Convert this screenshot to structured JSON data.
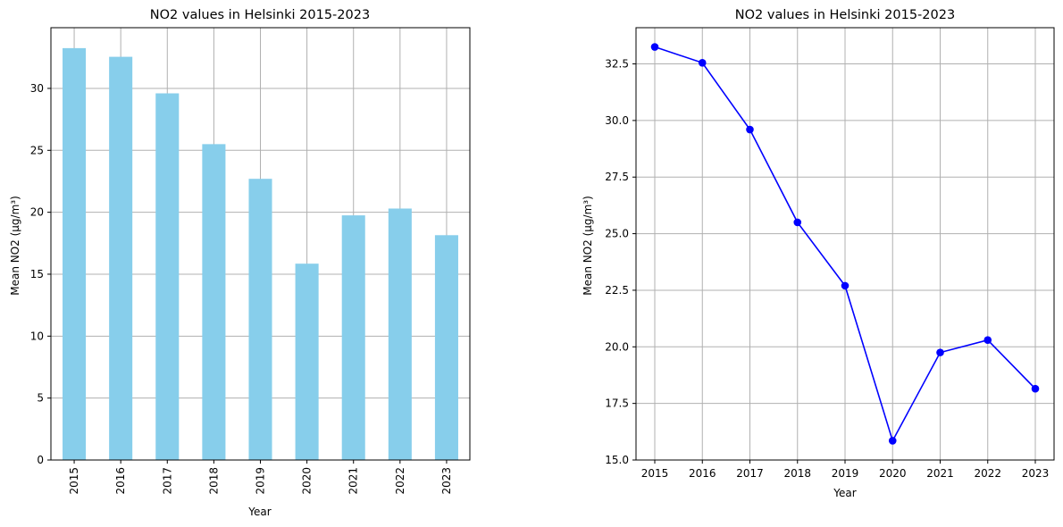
{
  "chart_data": [
    {
      "type": "bar",
      "title": "NO2 values in Helsinki 2015-2023",
      "xlabel": "Year",
      "ylabel": "Mean NO2 (µg/m³)",
      "categories": [
        "2015",
        "2016",
        "2017",
        "2018",
        "2019",
        "2020",
        "2021",
        "2022",
        "2023"
      ],
      "values": [
        33.25,
        32.55,
        29.6,
        25.5,
        22.7,
        15.85,
        19.75,
        20.3,
        18.15
      ],
      "ylim": [
        0,
        34.9
      ],
      "yticks": [
        0,
        5,
        10,
        15,
        20,
        25,
        30
      ],
      "ytick_labels": [
        "0",
        "5",
        "10",
        "15",
        "20",
        "25",
        "30"
      ],
      "bar_color": "#87ceeb",
      "grid": true,
      "xtick_rotation": "vertical"
    },
    {
      "type": "line",
      "title": "NO2 values in Helsinki 2015-2023",
      "xlabel": "Year",
      "ylabel": "Mean NO2 (µg/m³)",
      "x": [
        "2015",
        "2016",
        "2017",
        "2018",
        "2019",
        "2020",
        "2021",
        "2022",
        "2023"
      ],
      "values": [
        33.25,
        32.55,
        29.6,
        25.5,
        22.7,
        15.85,
        19.75,
        20.3,
        18.15
      ],
      "ylim": [
        15.0,
        34.1
      ],
      "yticks": [
        15.0,
        17.5,
        20.0,
        22.5,
        25.0,
        27.5,
        30.0,
        32.5
      ],
      "ytick_labels": [
        "15.0",
        "17.5",
        "20.0",
        "22.5",
        "25.0",
        "27.5",
        "30.0",
        "32.5"
      ],
      "line_color": "#0000ff",
      "marker": "circle",
      "grid": true
    }
  ]
}
